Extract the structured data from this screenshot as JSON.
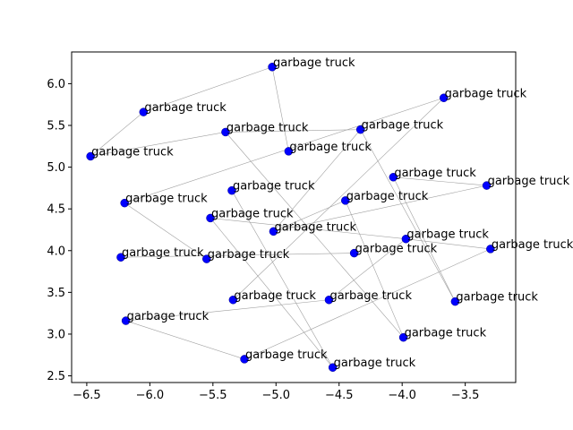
{
  "chart_data": {
    "type": "scatter",
    "title": "",
    "xlabel": "",
    "ylabel": "",
    "xlim": [
      -6.62,
      -3.1
    ],
    "ylim": [
      2.42,
      6.38
    ],
    "xticks": [
      -6.5,
      -6.0,
      -5.5,
      -5.0,
      -4.5,
      -4.0,
      -3.5
    ],
    "yticks": [
      2.5,
      3.0,
      3.5,
      4.0,
      4.5,
      5.0,
      5.5,
      6.0
    ],
    "xtick_labels": [
      "−6.5",
      "−6.0",
      "−5.5",
      "−5.0",
      "−4.5",
      "−4.0",
      "−3.5"
    ],
    "ytick_labels": [
      "2.5",
      "3.0",
      "3.5",
      "4.0",
      "4.5",
      "5.0",
      "5.5",
      "6.0"
    ],
    "grid": false,
    "marker_color": "#0000ff",
    "edge_color": "#a0a0a0",
    "points": [
      {
        "x": -5.03,
        "y": 6.2,
        "label": "garbage truck"
      },
      {
        "x": -3.67,
        "y": 5.83,
        "label": "garbage truck"
      },
      {
        "x": -6.05,
        "y": 5.66,
        "label": "garbage truck"
      },
      {
        "x": -4.33,
        "y": 5.45,
        "label": "garbage truck"
      },
      {
        "x": -5.4,
        "y": 5.42,
        "label": "garbage truck"
      },
      {
        "x": -6.47,
        "y": 5.13,
        "label": "garbage truck"
      },
      {
        "x": -4.9,
        "y": 5.19,
        "label": "garbage truck"
      },
      {
        "x": -4.07,
        "y": 4.88,
        "label": "garbage truck"
      },
      {
        "x": -3.33,
        "y": 4.78,
        "label": "garbage truck"
      },
      {
        "x": -5.35,
        "y": 4.72,
        "label": "garbage truck"
      },
      {
        "x": -4.45,
        "y": 4.6,
        "label": "garbage truck"
      },
      {
        "x": -6.2,
        "y": 4.57,
        "label": "garbage truck"
      },
      {
        "x": -5.52,
        "y": 4.39,
        "label": "garbage truck"
      },
      {
        "x": -5.02,
        "y": 4.23,
        "label": "garbage truck"
      },
      {
        "x": -3.97,
        "y": 4.14,
        "label": "garbage truck"
      },
      {
        "x": -3.3,
        "y": 4.02,
        "label": "garbage truck"
      },
      {
        "x": -4.38,
        "y": 3.97,
        "label": "garbage truck"
      },
      {
        "x": -6.23,
        "y": 3.92,
        "label": "garbage truck"
      },
      {
        "x": -5.55,
        "y": 3.9,
        "label": "garbage truck"
      },
      {
        "x": -5.34,
        "y": 3.41,
        "label": "garbage truck"
      },
      {
        "x": -4.58,
        "y": 3.41,
        "label": "garbage truck"
      },
      {
        "x": -3.58,
        "y": 3.39,
        "label": "garbage truck"
      },
      {
        "x": -6.19,
        "y": 3.16,
        "label": "garbage truck"
      },
      {
        "x": -3.99,
        "y": 2.96,
        "label": "garbage truck"
      },
      {
        "x": -5.25,
        "y": 2.7,
        "label": "garbage truck"
      },
      {
        "x": -4.55,
        "y": 2.6,
        "label": "garbage truck"
      }
    ],
    "edges": [
      [
        0,
        2
      ],
      [
        0,
        6
      ],
      [
        2,
        5
      ],
      [
        5,
        4
      ],
      [
        4,
        23
      ],
      [
        4,
        3
      ],
      [
        3,
        21
      ],
      [
        1,
        19
      ],
      [
        1,
        11
      ],
      [
        7,
        21
      ],
      [
        7,
        8
      ],
      [
        8,
        13
      ],
      [
        13,
        3
      ],
      [
        9,
        25
      ],
      [
        10,
        13
      ],
      [
        10,
        23
      ],
      [
        11,
        18
      ],
      [
        12,
        25
      ],
      [
        12,
        14
      ],
      [
        14,
        15
      ],
      [
        17,
        16
      ],
      [
        15,
        24
      ],
      [
        22,
        24
      ],
      [
        22,
        20
      ],
      [
        20,
        14
      ]
    ]
  }
}
